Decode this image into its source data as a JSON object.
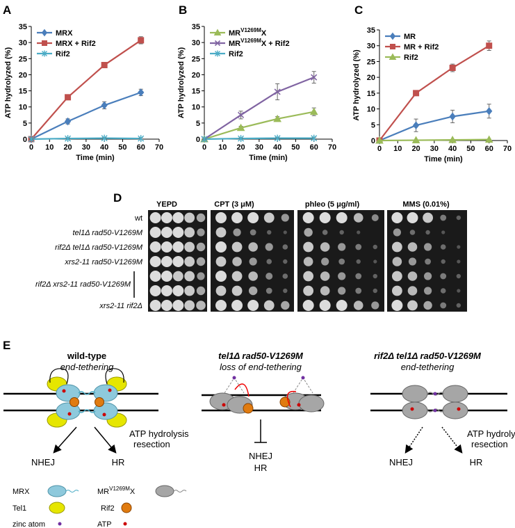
{
  "panel_labels": [
    "A",
    "B",
    "C",
    "D",
    "E"
  ],
  "chart_data": [
    {
      "type": "line",
      "x": [
        0,
        20,
        40,
        60
      ],
      "xlim": [
        0,
        70
      ],
      "xticks": [
        0,
        10,
        20,
        30,
        40,
        50,
        60,
        70
      ],
      "ylim": [
        0,
        35
      ],
      "yticks": [
        0,
        5,
        10,
        15,
        20,
        25,
        30,
        35
      ],
      "xlabel": "Time (min)",
      "ylabel": "ATP hydrolyzed (%)",
      "legend": "upper left",
      "series": [
        {
          "name": "MRX",
          "color": "#4a7ebb",
          "marker": "diamond",
          "values": [
            0,
            5.5,
            10.5,
            14.5
          ],
          "errors": [
            0,
            0.8,
            1.1,
            1.0
          ]
        },
        {
          "name": "MRX + Rif2",
          "color": "#c0504d",
          "marker": "square",
          "values": [
            0,
            13,
            23,
            30.7
          ],
          "errors": [
            0,
            0.7,
            0.8,
            1.1
          ]
        },
        {
          "name": "Rif2",
          "color": "#4bacc6",
          "marker": "star",
          "values": [
            0,
            0.2,
            0.3,
            0.2
          ],
          "errors": [
            0,
            0.2,
            0.2,
            0.2
          ]
        }
      ]
    },
    {
      "type": "line",
      "x": [
        0,
        20,
        40,
        60
      ],
      "xlim": [
        0,
        70
      ],
      "xticks": [
        0,
        10,
        20,
        30,
        40,
        50,
        60,
        70
      ],
      "ylim": [
        0,
        35
      ],
      "yticks": [
        0,
        5,
        10,
        15,
        20,
        25,
        30,
        35
      ],
      "xlabel": "Time (min)",
      "ylabel": "ATP hydrolyzed (%)",
      "legend": "upper left",
      "series": [
        {
          "name": [
            "MR",
            "V1269M",
            "X"
          ],
          "color": "#9bbb59",
          "marker": "triangle",
          "values": [
            0,
            3.5,
            6.3,
            8.5
          ],
          "errors": [
            0,
            0.5,
            0.7,
            1.2
          ]
        },
        {
          "name": [
            "MR",
            "V1269M",
            "X + Rif2"
          ],
          "color": "#8064a2",
          "marker": "cross",
          "values": [
            0,
            7.5,
            14.7,
            19.2
          ],
          "errors": [
            0,
            1.2,
            2.5,
            1.8
          ]
        },
        {
          "name": "Rif2",
          "color": "#4bacc6",
          "marker": "star",
          "values": [
            0,
            0.2,
            0.3,
            0.3
          ],
          "errors": [
            0,
            0.2,
            0.2,
            0.2
          ]
        }
      ]
    },
    {
      "type": "line",
      "x": [
        0,
        20,
        40,
        60
      ],
      "xlim": [
        0,
        70
      ],
      "xticks": [
        0,
        10,
        20,
        30,
        40,
        50,
        60,
        70
      ],
      "ylim": [
        0,
        35
      ],
      "yticks": [
        0,
        5,
        10,
        15,
        20,
        25,
        30,
        35
      ],
      "xlabel": "Time (min)",
      "ylabel": "ATP hydrolyzed (%)",
      "legend": "upper left",
      "series": [
        {
          "name": "MR",
          "color": "#4a7ebb",
          "marker": "diamond",
          "values": [
            0,
            4.8,
            7.6,
            9.3
          ],
          "errors": [
            0,
            2.0,
            2.0,
            2.2
          ]
        },
        {
          "name": "MR + Rif2",
          "color": "#c0504d",
          "marker": "square",
          "values": [
            0,
            15,
            23,
            30
          ],
          "errors": [
            0,
            0.5,
            1.2,
            1.5
          ]
        },
        {
          "name": "Rif2",
          "color": "#9bbb59",
          "marker": "triangle",
          "values": [
            0,
            0.1,
            0.2,
            0.3
          ],
          "errors": [
            0,
            0.1,
            0.1,
            0.1
          ]
        }
      ]
    }
  ],
  "panel_d": {
    "columns": [
      "YEPD",
      "CPT (3 μM)",
      "phleo (5 μg/ml)",
      "MMS (0.01%)"
    ],
    "rows": [
      "wt",
      "tel1Δ rad50-V1269M",
      "rif2Δ tel1Δ rad50-V1269M",
      "xrs2-11 rad50-V1269M",
      "rif2Δ xrs2-11 rad50-V1269M",
      "xrs2-11 rif2Δ"
    ]
  },
  "panel_e": {
    "wild_type": {
      "title": "wild-type",
      "subtitle": "end-tethering",
      "annotation": [
        "ATP hydrolysis",
        "resection"
      ],
      "outcomes": [
        "NHEJ",
        "HR"
      ]
    },
    "tel1": {
      "title": "tel1Δ rad50-V1269M",
      "subtitle": "loss of end-tethering",
      "outcomes": [
        "NHEJ",
        "HR"
      ]
    },
    "rif2": {
      "title": "rif2Δ tel1Δ rad50-V1269M",
      "subtitle": "end-tethering",
      "annotation": [
        "ATP hydrolysis",
        "resection"
      ],
      "outcomes": [
        "NHEJ",
        "HR"
      ]
    },
    "legend": [
      "MRX",
      [
        "MR",
        "V1269M",
        "X"
      ],
      "Tel1",
      "Rif2",
      "zinc atom",
      "ATP"
    ]
  }
}
